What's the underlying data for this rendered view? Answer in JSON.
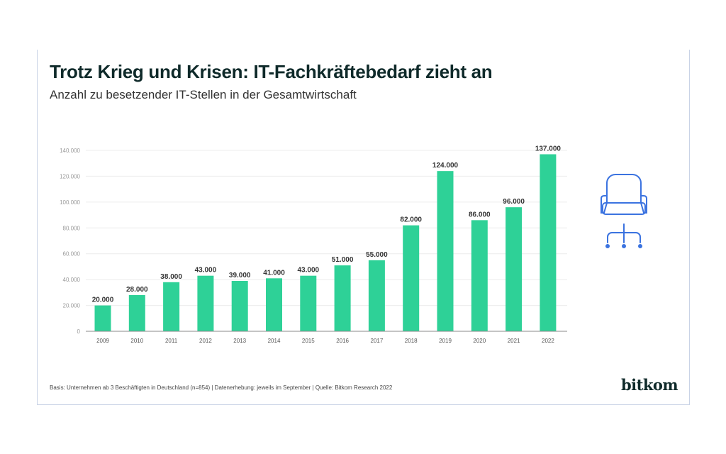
{
  "header": {
    "title": "Trotz Krieg und Krisen: IT-Fachkräftebedarf zieht an",
    "subtitle": "Anzahl zu besetzender IT-Stellen in der Gesamtwirtschaft"
  },
  "footer": {
    "note": "Basis: Unternehmen ab 3 Beschäftigten in Deutschland (n=854) | Datenerhebung: jeweils im September | Quelle: Bitkom Research 2022",
    "logo": "bitkom"
  },
  "icon": {
    "name": "office-chair-icon",
    "color": "#3b73e0"
  },
  "chart_data": {
    "type": "bar",
    "title": "Trotz Krieg und Krisen: IT-Fachkräftebedarf zieht an",
    "subtitle": "Anzahl zu besetzender IT-Stellen in der Gesamtwirtschaft",
    "categories": [
      "2009",
      "2010",
      "2011",
      "2012",
      "2013",
      "2014",
      "2015",
      "2016",
      "2017",
      "2018",
      "2019",
      "2020",
      "2021",
      "2022"
    ],
    "values": [
      20000,
      28000,
      38000,
      43000,
      39000,
      41000,
      43000,
      51000,
      55000,
      82000,
      124000,
      86000,
      96000,
      137000
    ],
    "data_labels": [
      "20.000",
      "28.000",
      "38.000",
      "43.000",
      "39.000",
      "41.000",
      "43.000",
      "51.000",
      "55.000",
      "82.000",
      "124.000",
      "86.000",
      "96.000",
      "137.000"
    ],
    "ylim": [
      0,
      140000
    ],
    "yticks": [
      0,
      20000,
      40000,
      60000,
      80000,
      100000,
      120000,
      140000
    ],
    "ytick_labels": [
      "0",
      "20.000",
      "40.000",
      "60.000",
      "80.000",
      "100.000",
      "120.000",
      "140.000"
    ],
    "grid": true,
    "bar_color": "#2ed197"
  }
}
